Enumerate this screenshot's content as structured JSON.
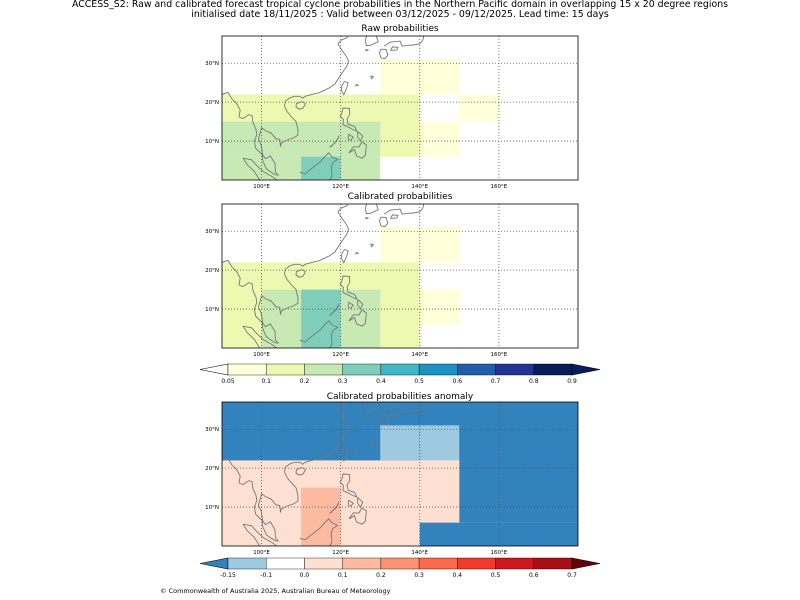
{
  "header": {
    "line1": "ACCESS_S2: Raw and calibrated forecast tropical cyclone probabilities in the Northern Pacific domain in overlapping 15 x 20 degree regions",
    "line2": "initialised date 18/11/2025 :  Valid between 03/12/2025 - 09/12/2025. Lead time: 15 days"
  },
  "footer": "© Commonwealth of Australia 2025, Australian Bureau of Meteorology",
  "chart_data": [
    {
      "type": "heatmap",
      "title": "Raw probabilities",
      "map_extent": {
        "lon": [
          90,
          180
        ],
        "lat": [
          0,
          37
        ]
      },
      "lon_ticks": [
        "100°E",
        "120°E",
        "140°E",
        "160°E"
      ],
      "lat_ticks": [
        "30°N",
        "20°N",
        "10°N"
      ],
      "cells": [
        {
          "lon": [
            130,
            150
          ],
          "lat": [
            22,
            31
          ],
          "value": 0.07
        },
        {
          "lon": [
            150,
            160
          ],
          "lat": [
            15,
            22
          ],
          "value": 0.07
        },
        {
          "lon": [
            140,
            150
          ],
          "lat": [
            6,
            15
          ],
          "value": 0.07
        },
        {
          "lon": [
            90,
            140
          ],
          "lat": [
            15,
            22
          ],
          "value": 0.13
        },
        {
          "lon": [
            130,
            140
          ],
          "lat": [
            6,
            15
          ],
          "value": 0.13
        },
        {
          "lon": [
            90,
            130
          ],
          "lat": [
            6,
            15
          ],
          "value": 0.25
        },
        {
          "lon": [
            90,
            110
          ],
          "lat": [
            0,
            6
          ],
          "value": 0.25
        },
        {
          "lon": [
            120,
            130
          ],
          "lat": [
            0,
            6
          ],
          "value": 0.25
        },
        {
          "lon": [
            110,
            120
          ],
          "lat": [
            0,
            6
          ],
          "value": 0.35
        }
      ]
    },
    {
      "type": "heatmap",
      "title": "Calibrated probabilities",
      "map_extent": {
        "lon": [
          90,
          180
        ],
        "lat": [
          0,
          37
        ]
      },
      "lon_ticks": [
        "100°E",
        "120°E",
        "140°E",
        "160°E"
      ],
      "lat_ticks": [
        "30°N",
        "20°N",
        "10°N"
      ],
      "cells": [
        {
          "lon": [
            130,
            150
          ],
          "lat": [
            22,
            31
          ],
          "value": 0.07
        },
        {
          "lon": [
            140,
            150
          ],
          "lat": [
            6,
            15
          ],
          "value": 0.07
        },
        {
          "lon": [
            90,
            140
          ],
          "lat": [
            15,
            22
          ],
          "value": 0.13
        },
        {
          "lon": [
            90,
            100
          ],
          "lat": [
            0,
            15
          ],
          "value": 0.13
        },
        {
          "lon": [
            130,
            140
          ],
          "lat": [
            0,
            15
          ],
          "value": 0.13
        },
        {
          "lon": [
            100,
            110
          ],
          "lat": [
            0,
            15
          ],
          "value": 0.25
        },
        {
          "lon": [
            120,
            130
          ],
          "lat": [
            0,
            15
          ],
          "value": 0.25
        },
        {
          "lon": [
            110,
            120
          ],
          "lat": [
            0,
            15
          ],
          "value": 0.35
        }
      ]
    },
    {
      "type": "heatmap",
      "title": "Calibrated probabilities anomaly",
      "map_extent": {
        "lon": [
          90,
          180
        ],
        "lat": [
          0,
          37
        ]
      },
      "lon_ticks": [
        "100°E",
        "120°E",
        "140°E",
        "160°E"
      ],
      "lat_ticks": [
        "30°N",
        "20°N",
        "10°N"
      ],
      "background_value": -0.2,
      "cells": [
        {
          "lon": [
            90,
            130
          ],
          "lat": [
            22,
            37
          ],
          "value": -0.2
        },
        {
          "lon": [
            130,
            140
          ],
          "lat": [
            22,
            31
          ],
          "value": -0.12
        },
        {
          "lon": [
            140,
            150
          ],
          "lat": [
            6,
            31
          ],
          "value": -0.12
        },
        {
          "lon": [
            90,
            180
          ],
          "lat": [
            0,
            22
          ],
          "value": 0.0
        },
        {
          "lon": [
            140,
            180
          ],
          "lat": [
            0,
            6
          ],
          "value": -0.2
        },
        {
          "lon": [
            150,
            180
          ],
          "lat": [
            6,
            31
          ],
          "value": -0.2
        },
        {
          "lon": [
            100,
            110
          ],
          "lat": [
            0,
            15
          ],
          "value": 0.07
        },
        {
          "lon": [
            120,
            130
          ],
          "lat": [
            0,
            15
          ],
          "value": 0.07
        },
        {
          "lon": [
            110,
            120
          ],
          "lat": [
            0,
            15
          ],
          "value": 0.15
        }
      ]
    }
  ],
  "colorbars": [
    {
      "ticks": [
        "0.05",
        "0.1",
        "0.2",
        "0.3",
        "0.4",
        "0.5",
        "0.6",
        "0.7",
        "0.8",
        "0.9"
      ],
      "colors": [
        "#ffffd9",
        "#edf8b1",
        "#c7e9b4",
        "#7fcdbb",
        "#41b6c4",
        "#1d91c0",
        "#225ea8",
        "#253494",
        "#081d58"
      ],
      "under": "#ffffff",
      "over": "#081d58"
    },
    {
      "ticks": [
        "-0.15",
        "-0.1",
        "0.0",
        "0.1",
        "0.2",
        "0.3",
        "0.4",
        "0.5",
        "0.6",
        "0.7"
      ],
      "colors": [
        "#9ecae1",
        "#ffffff",
        "#fee0d2",
        "#fcbba1",
        "#fc9272",
        "#fb6a4a",
        "#ef3b2c",
        "#cb181d",
        "#a50f15"
      ],
      "under": "#3182bd",
      "over": "#67000d"
    }
  ]
}
